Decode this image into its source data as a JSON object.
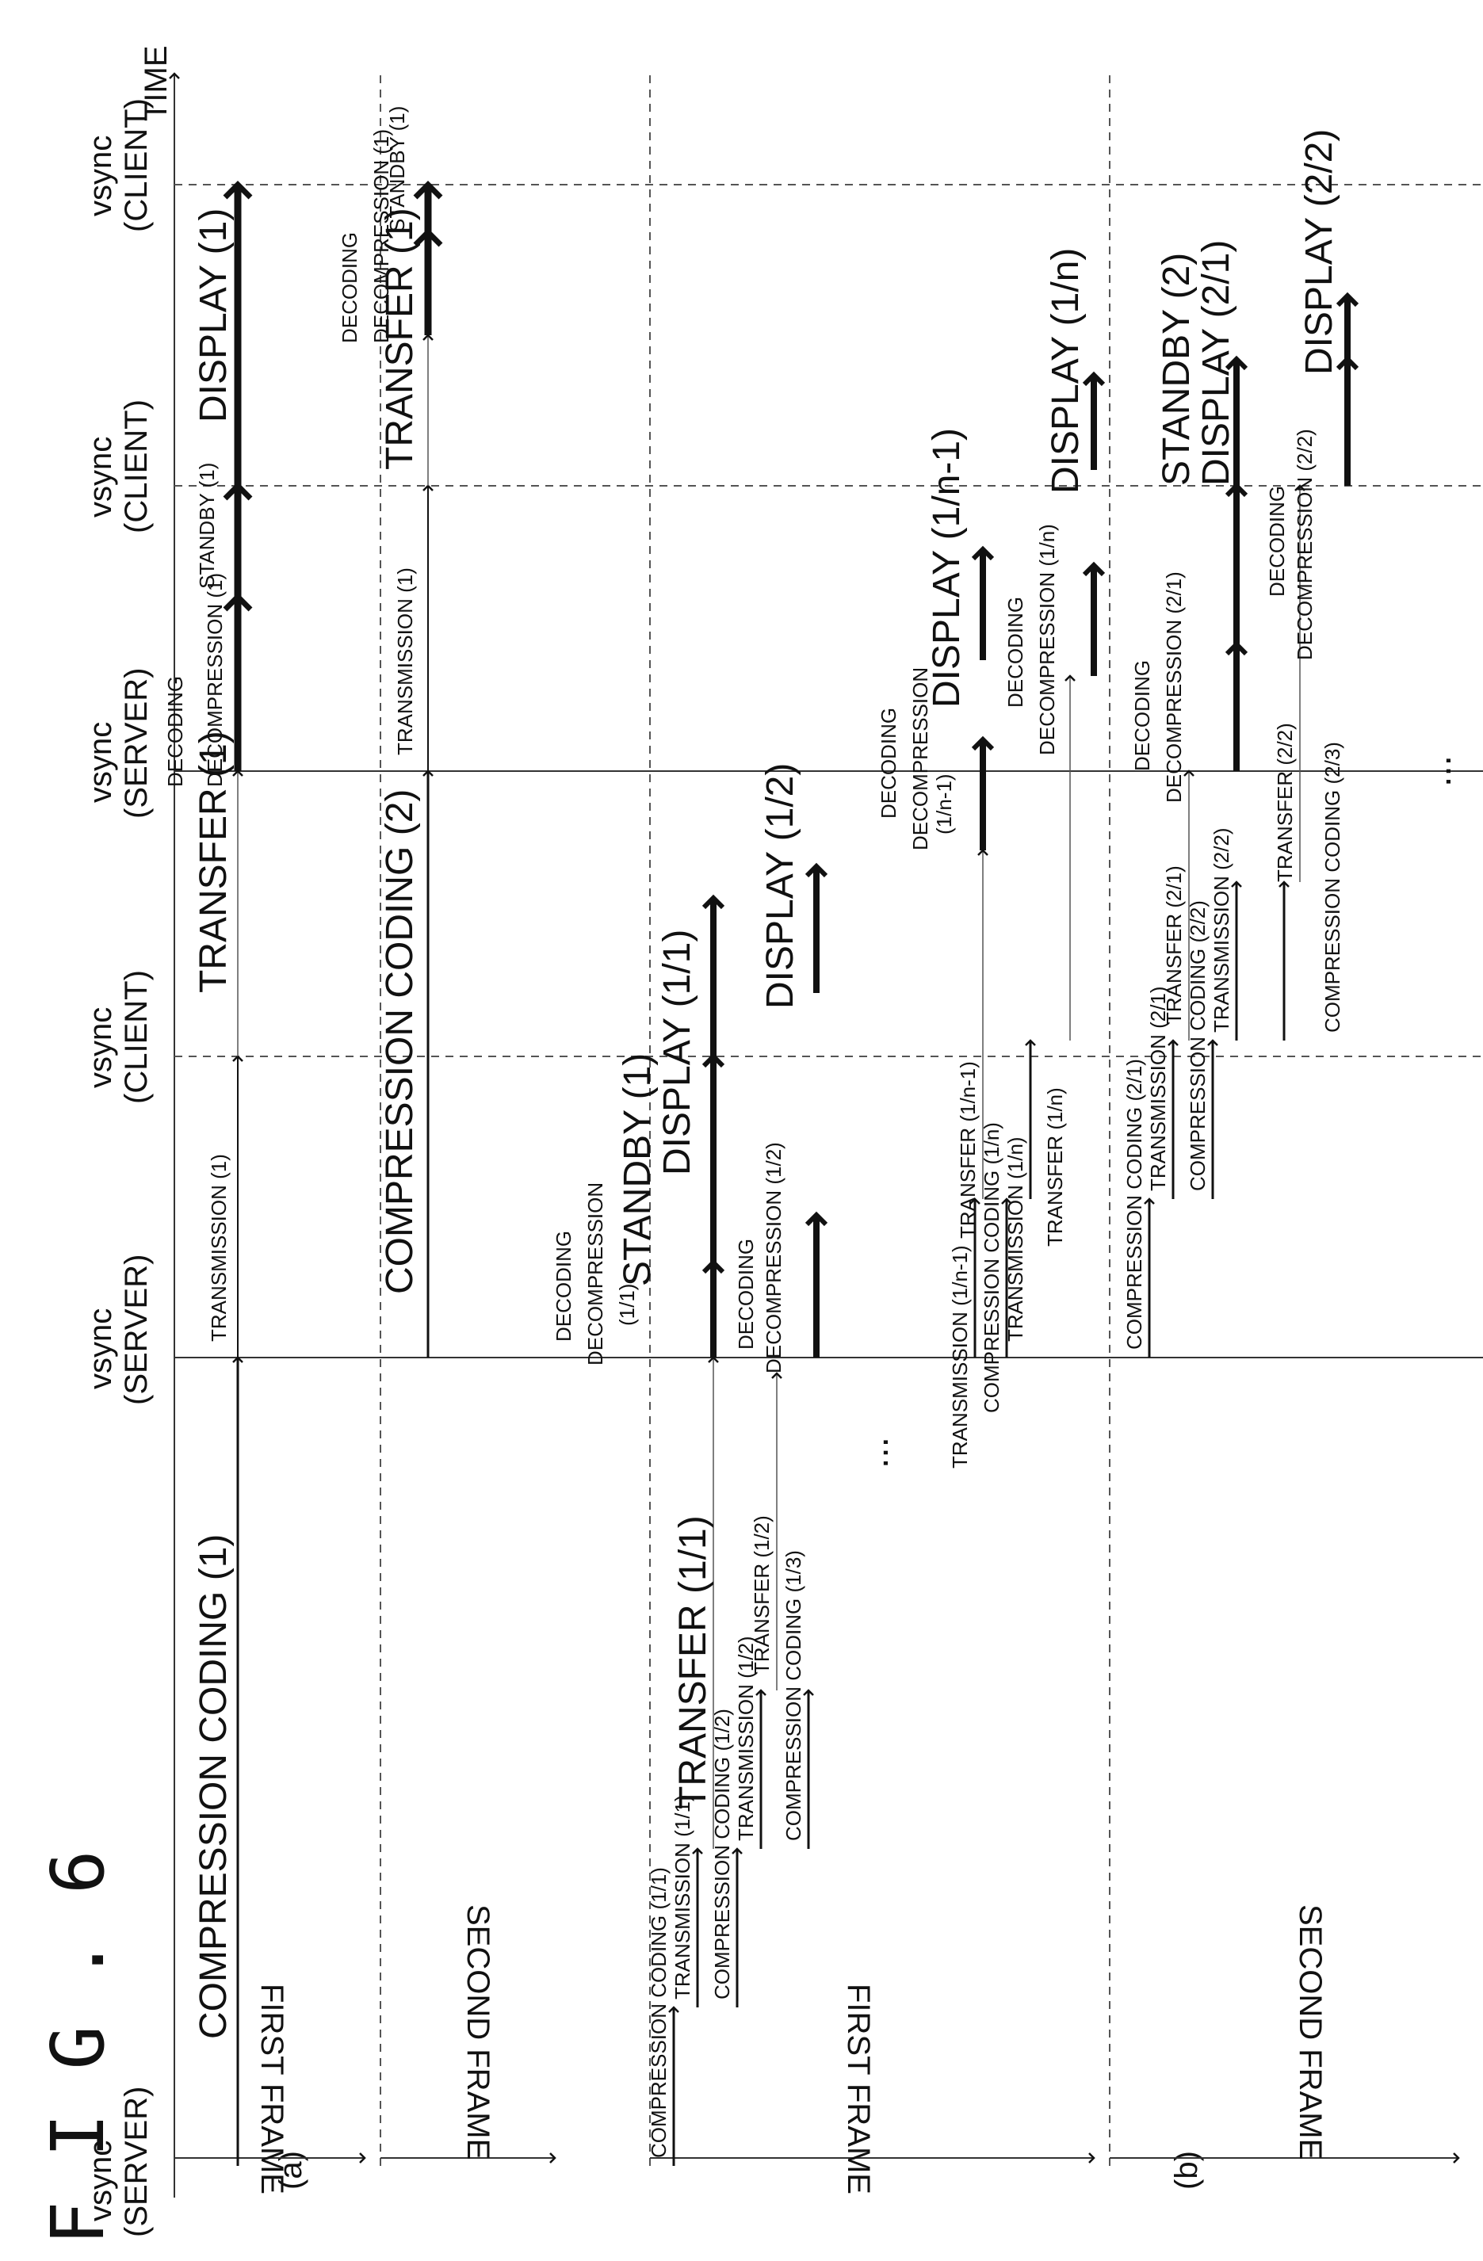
{
  "figure_title": "F I G . 6",
  "panel_a_label": "(a)",
  "panel_b_label": "(b)",
  "time_label": "TIME",
  "vsync_labels": {
    "server_line": "vsync",
    "server_sub": "(SERVER)",
    "client_line": "vsync",
    "client_sub": "(CLIENT)"
  },
  "row_labels": {
    "a_first": "FIRST FRAME",
    "a_second": "SECOND FRAME",
    "b_first": "FIRST FRAME",
    "b_second": "SECOND FRAME"
  },
  "panel_a": {
    "first_frame": {
      "compression": "COMPRESSION CODING (1)",
      "transmission": "TRANSMISSION (1)",
      "transfer": "TRANSFER (1)",
      "decoding_1": "DECODING",
      "decoding_2": "DECOMPRESSION (1)",
      "standby": "STANDBY (1)",
      "display": "DISPLAY (1)"
    },
    "second_frame": {
      "compression": "COMPRESSION CODING (2)",
      "transmission": "TRANSMISSION (1)",
      "transfer": "TRANSFER (1)",
      "decoding_1": "DECODING",
      "decoding_2": "DECOMPRESSION (1)",
      "standby": "STANDBY (1)"
    }
  },
  "panel_b": {
    "first_frame": {
      "cc_11": "COMPRESSION CODING (1/1)",
      "tm_11": "TRANSMISSION (1/1)",
      "tf_11": "TRANSFER (1/1)",
      "cc_12": "COMPRESSION CODING (1/2)",
      "tm_12": "TRANSMISSION (1/2)",
      "tf_12": "TRANSFER (1/2)",
      "cc_13": "COMPRESSION CODING (1/3)",
      "dec_11_a": "DECODING",
      "dec_11_b": "DECOMPRESSION",
      "dec_11_c": "(1/1)",
      "standby": "STANDBY (1)",
      "disp_11": "DISPLAY (1/1)",
      "dec_12_a": "DECODING",
      "dec_12_b": "DECOMPRESSION (1/2)",
      "disp_12": "DISPLAY (1/2)",
      "ellipsis": "...",
      "tm_1n1": "TRANSMISSION (1/n-1)",
      "tf_1n1": "TRANSFER (1/n-1)",
      "cc_1n": "COMPRESSION CODING (1/n)",
      "tm_1n": "TRANSMISSION (1/n)",
      "tf_1n": "TRANSFER (1/n)",
      "dec_1n1_a": "DECODING",
      "dec_1n1_b": "DECOMPRESSION",
      "dec_1n1_c": "(1/n-1)",
      "disp_1n1": "DISPLAY (1/n-1)",
      "dec_1n_a": "DECODING",
      "dec_1n_b": "DECOMPRESSION (1/n)",
      "disp_1n": "DISPLAY (1/n)"
    },
    "second_frame": {
      "cc_21": "COMPRESSION CODING (2/1)",
      "tm_21": "TRANSMISSION (2/1)",
      "tf_21": "TRANSFER (2/1)",
      "cc_22": "COMPRESSION CODING (2/2)",
      "tm_22": "TRANSMISSION (2/2)",
      "tf_22": "TRANSFER (2/2)",
      "cc_23": "COMPRESSION CODING (2/3)",
      "dec_21_a": "DECODING",
      "dec_21_b": "DECOMPRESSION (2/1)",
      "standby": "STANDBY (2)",
      "disp_21": "DISPLAY (2/1)",
      "dec_22_a": "DECODING",
      "dec_22_b": "DECOMPRESSION (2/2)",
      "disp_22": "DISPLAY (2/2)",
      "ellipsis": "..."
    }
  }
}
